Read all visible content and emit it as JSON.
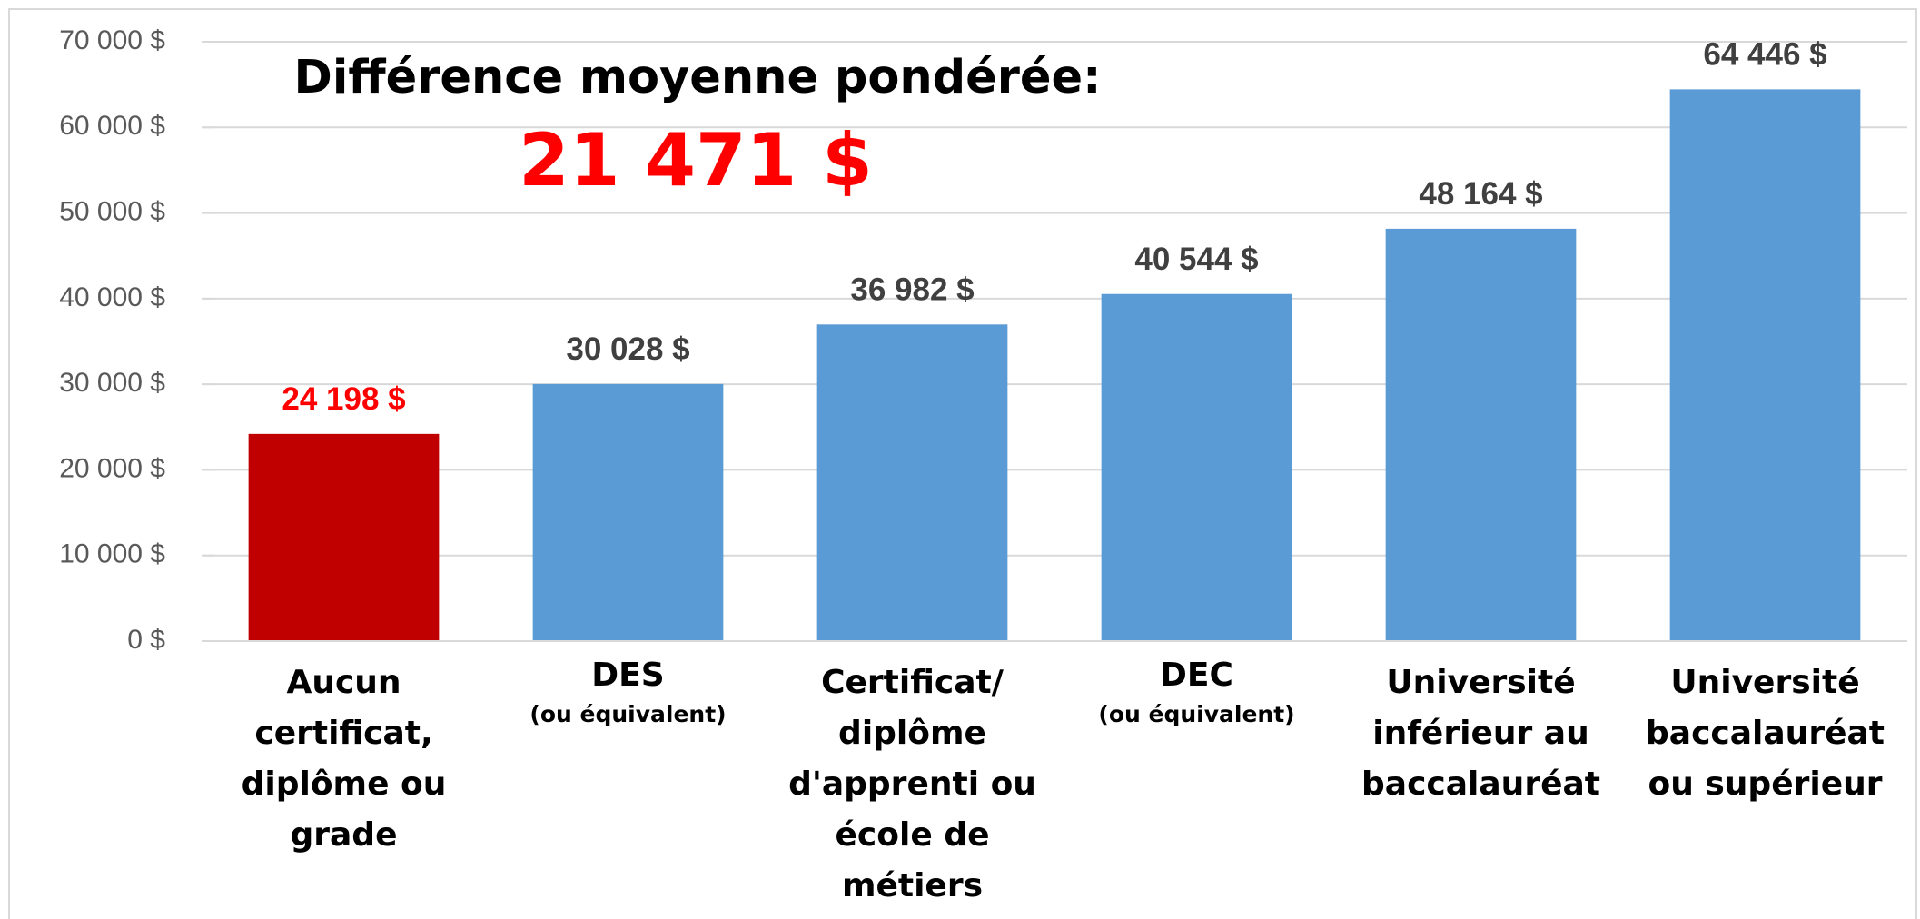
{
  "chart_data": {
    "type": "bar",
    "annotations": [
      {
        "text": "Différence moyenne pondérée:",
        "color": "#000000"
      },
      {
        "text": "21 471 $",
        "color": "#ff0000"
      }
    ],
    "categories": [
      "Aucun\ncertificat,\ndiplôme ou\ngrade",
      "DES",
      "Certificat/\ndiplôme\nd'apprenti ou\nécole de\nmétiers",
      "DEC",
      "Université\ninférieur au\nbaccalauréat",
      "Université\nbaccalauréat\nou supérieur"
    ],
    "category_notes": [
      null,
      "(ou équivalent)",
      null,
      "(ou équivalent)",
      null,
      null
    ],
    "values": [
      24198,
      30028,
      36982,
      40544,
      48164,
      64446
    ],
    "value_labels": [
      "24 198 $",
      "30 028 $",
      "36 982 $",
      "40 544 $",
      "48 164 $",
      "64 446 $"
    ],
    "colors": [
      "#c00000",
      "#5b9bd5",
      "#5b9bd5",
      "#5b9bd5",
      "#5b9bd5",
      "#5b9bd5"
    ],
    "value_label_colors": [
      "#ff0000",
      "#404040",
      "#404040",
      "#404040",
      "#404040",
      "#404040"
    ],
    "ylim": [
      0,
      70000
    ],
    "yticks": [
      {
        "value": 0,
        "label": "0 $"
      },
      {
        "value": 10000,
        "label": "10 000 $"
      },
      {
        "value": 20000,
        "label": "20 000 $"
      },
      {
        "value": 30000,
        "label": "30 000 $"
      },
      {
        "value": 40000,
        "label": "40 000 $"
      },
      {
        "value": 50000,
        "label": "50 000 $"
      },
      {
        "value": 60000,
        "label": "60 000 $"
      },
      {
        "value": 70000,
        "label": "70 000 $"
      }
    ],
    "grid": true
  }
}
